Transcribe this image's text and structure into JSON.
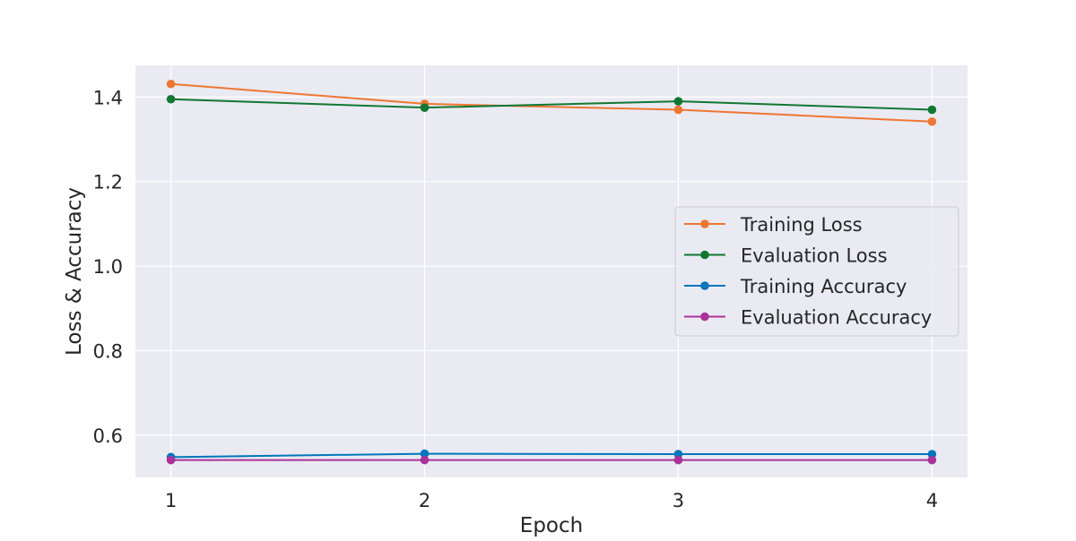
{
  "chart_data": {
    "type": "line",
    "title": "",
    "xlabel": "Epoch",
    "ylabel": "Loss & Accuracy",
    "x": [
      1,
      2,
      3,
      4
    ],
    "xticks": [
      "1",
      "2",
      "3",
      "4"
    ],
    "yticks": [
      "0.6",
      "0.8",
      "1.0",
      "1.2",
      "1.4"
    ],
    "xlim": [
      0.86,
      4.14
    ],
    "ylim": [
      0.5,
      1.475
    ],
    "grid": true,
    "legend_position": "center-right",
    "background": "#eaeaf2",
    "grid_color": "#ffffff",
    "series": [
      {
        "name": "Training Loss",
        "color": "#ee7733",
        "values": [
          1.431,
          1.384,
          1.37,
          1.342
        ]
      },
      {
        "name": "Evaluation Loss",
        "color": "#117733",
        "values": [
          1.395,
          1.375,
          1.39,
          1.37
        ]
      },
      {
        "name": "Training Accuracy",
        "color": "#0077bb",
        "values": [
          0.548,
          0.556,
          0.555,
          0.555
        ]
      },
      {
        "name": "Evaluation Accuracy",
        "color": "#aa3399",
        "values": [
          0.541,
          0.541,
          0.541,
          0.541
        ]
      }
    ]
  }
}
